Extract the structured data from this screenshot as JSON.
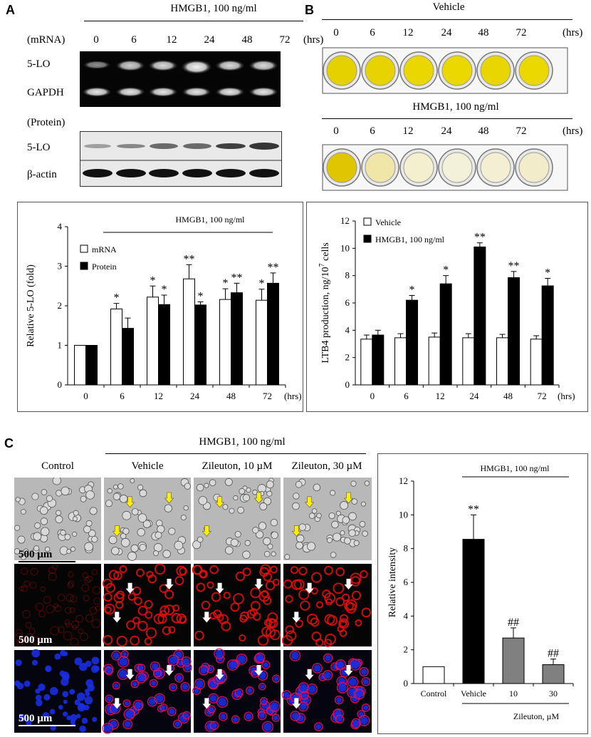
{
  "panelA": {
    "letter": "A",
    "treatment": "HMGB1, 100 ng/ml",
    "mrna_label": "(mRNA)",
    "protein_label": "(Protein)",
    "times": [
      "0",
      "6",
      "12",
      "24",
      "48",
      "72"
    ],
    "hrs_label": "(hrs)",
    "bands": [
      "5-LO",
      "GAPDH",
      "5-LO",
      "β-actin"
    ]
  },
  "panelB": {
    "letter": "B",
    "vehicle_title": "Vehicle",
    "hmgb1_title": "HMGB1, 100 ng/ml",
    "times": [
      "0",
      "6",
      "12",
      "24",
      "48",
      "72"
    ],
    "hrs_label": "(hrs)",
    "plate_vehicle_colors": [
      "#e5d000",
      "#e7d300",
      "#ead600",
      "#ebd800",
      "#e9d600",
      "#ebd800"
    ],
    "plate_hmgb1_colors": [
      "#e0c600",
      "#efe6a8",
      "#f3efcf",
      "#f4f1da",
      "#f3efd2",
      "#f2eccb"
    ]
  },
  "panelC": {
    "letter": "C",
    "treatment": "HMGB1, 100 ng/ml",
    "col_labels": [
      "Control",
      "Vehicle",
      "Zileuton, 10 µM",
      "Zileuton, 30 µM"
    ],
    "scale_bars": [
      "500 µm",
      "500 µm",
      "500 µm"
    ]
  },
  "chart_data": [
    {
      "type": "bar",
      "id": "A-bar",
      "categories": [
        "0",
        "6",
        "12",
        "24",
        "48",
        "72"
      ],
      "xunit": "(hrs)",
      "ylabel": "Relative 5-LO (fold)",
      "ylim": [
        0,
        4
      ],
      "yticks": [
        "0",
        "1",
        "2",
        "3",
        "4"
      ],
      "bracket_label": "HMGB1, 100 ng/ml",
      "series": [
        {
          "name": "mRNA",
          "color": "#ffffff",
          "values": [
            1.0,
            1.92,
            2.22,
            2.68,
            2.16,
            2.14
          ],
          "errors": [
            0,
            0.14,
            0.28,
            0.36,
            0.27,
            0.28
          ],
          "marks": [
            "",
            "*",
            "*",
            "**",
            "*",
            "*"
          ]
        },
        {
          "name": "Protein",
          "color": "#000000",
          "values": [
            1.0,
            1.43,
            2.03,
            2.02,
            2.33,
            2.57
          ],
          "errors": [
            0,
            0.26,
            0.24,
            0.08,
            0.24,
            0.26
          ],
          "marks": [
            "",
            "",
            "*",
            "*",
            "**",
            "**"
          ]
        }
      ],
      "legend": "top-left"
    },
    {
      "type": "bar",
      "id": "B-bar",
      "categories": [
        "0",
        "6",
        "12",
        "24",
        "48",
        "72"
      ],
      "xunit": "(hrs)",
      "ylabel": "LTB4 production, ng/10",
      "ylabel_sup": "7",
      "ylabel_end": " cells",
      "ylim": [
        0,
        12
      ],
      "yticks": [
        "0",
        "2",
        "4",
        "6",
        "8",
        "10",
        "12"
      ],
      "series": [
        {
          "name": "Vehicle",
          "color": "#ffffff",
          "values": [
            3.35,
            3.45,
            3.5,
            3.45,
            3.45,
            3.35
          ],
          "errors": [
            0.3,
            0.3,
            0.3,
            0.3,
            0.25,
            0.25
          ],
          "marks": [
            "",
            "",
            "",
            "",
            "",
            ""
          ]
        },
        {
          "name": "HMGB1, 100 ng/ml",
          "color": "#000000",
          "values": [
            3.65,
            6.2,
            7.4,
            10.1,
            7.85,
            7.25
          ],
          "errors": [
            0.35,
            0.35,
            0.6,
            0.3,
            0.45,
            0.55
          ],
          "marks": [
            "",
            "*",
            "*",
            "**",
            "**",
            "*"
          ]
        }
      ],
      "legend": "top-left"
    },
    {
      "type": "bar",
      "id": "C-bar",
      "categories": [
        "Control",
        "Vehicle",
        "10",
        "30"
      ],
      "ylabel": "Relative intensity",
      "ylim": [
        0,
        12
      ],
      "yticks": [
        "0",
        "2",
        "4",
        "6",
        "8",
        "10",
        "12"
      ],
      "bracket_label": "HMGB1, 100 ng/ml",
      "xgroup_label": "Zileuton, µM",
      "series": [
        {
          "name": "",
          "colors": [
            "#ffffff",
            "#000000",
            "#808080",
            "#808080"
          ],
          "values": [
            1.0,
            8.55,
            2.7,
            1.12
          ],
          "errors": [
            0,
            1.45,
            0.6,
            0.33
          ],
          "marks": [
            "",
            "**",
            "##",
            "##"
          ]
        }
      ]
    }
  ]
}
